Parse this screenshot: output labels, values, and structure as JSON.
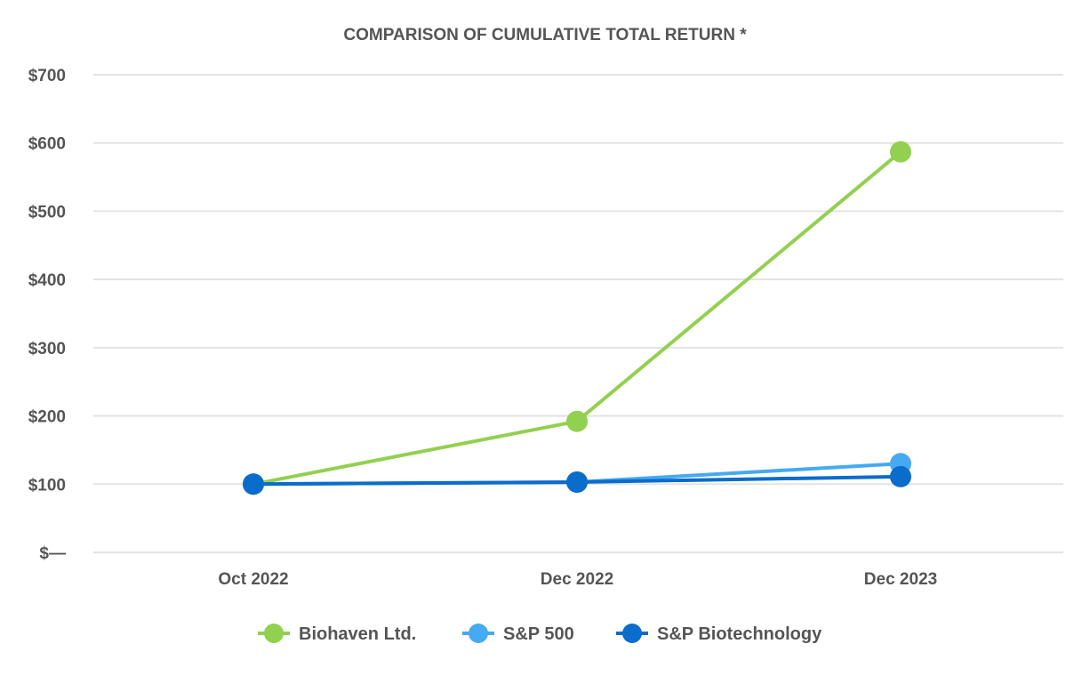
{
  "chart_data": {
    "type": "line",
    "title": "COMPARISON OF CUMULATIVE TOTAL RETURN *",
    "xlabel": "",
    "ylabel": "",
    "categories": [
      "Oct 2022",
      "Dec 2022",
      "Dec 2023"
    ],
    "ylim": [
      0,
      700
    ],
    "yticks": [
      0,
      100,
      200,
      300,
      400,
      500,
      600,
      700
    ],
    "ytick_labels": [
      "$—",
      "$100",
      "$200",
      "$300",
      "$400",
      "$500",
      "$600",
      "$700"
    ],
    "grid": true,
    "legend_position": "bottom",
    "series": [
      {
        "name": "Biohaven Ltd.",
        "color": "#92d050",
        "values": [
          100,
          192,
          587
        ]
      },
      {
        "name": "S&P 500",
        "color": "#45aaf2",
        "values": [
          100,
          103,
          130
        ]
      },
      {
        "name": "S&P Biotechnology",
        "color": "#0a6ccb",
        "values": [
          100,
          103,
          111
        ]
      }
    ]
  }
}
